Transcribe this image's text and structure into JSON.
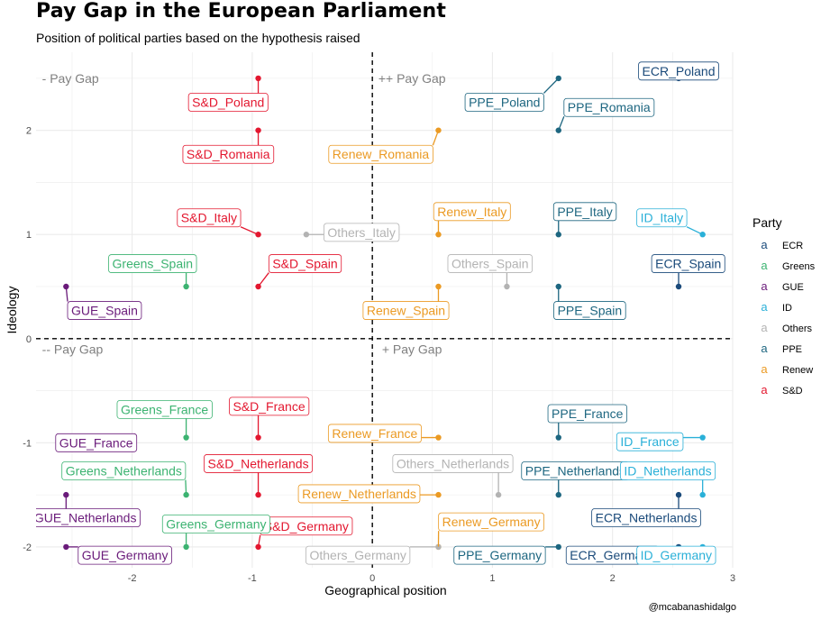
{
  "chart_data": {
    "type": "scatter",
    "title": "Pay Gap in the European Parliament",
    "subtitle": "Position of political parties based on the hypothesis raised",
    "xlabel": "Geographical position",
    "ylabel": "Ideology",
    "caption": "@mcabanashidalgo",
    "xlim": [
      -2.8,
      3.0
    ],
    "ylim": [
      -2.2,
      2.75
    ],
    "xticks": [
      -2,
      -1,
      0,
      1,
      2,
      3
    ],
    "yticks": [
      -2,
      -1,
      0,
      1,
      2
    ],
    "grid": true,
    "legend": {
      "title": "Party",
      "placement": "right",
      "key_glyph": "a",
      "entries": [
        "ECR",
        "Greens",
        "GUE",
        "ID",
        "Others",
        "PPE",
        "Renew",
        "S&D"
      ]
    },
    "colors": {
      "ECR": "#1a4a7a",
      "Greens": "#3cb371",
      "GUE": "#6a1b7a",
      "ID": "#2ab0d8",
      "Others": "#b3b3b3",
      "PPE": "#1d6680",
      "Renew": "#eb9a23",
      "S&D": "#e3172f"
    },
    "quadrant_labels": [
      {
        "text": "- Pay Gap",
        "x": -2.78,
        "y": 2.5
      },
      {
        "text": "++ Pay Gap",
        "x": 0.02,
        "y": 2.5
      },
      {
        "text": "-- Pay Gap",
        "x": -2.78,
        "y": -0.1
      },
      {
        "text": "+ Pay Gap",
        "x": 0.05,
        "y": -0.1
      }
    ],
    "points": [
      {
        "label": "S&D_Poland",
        "party": "S&D",
        "x": -0.95,
        "y": 2.5,
        "lx": -1.2,
        "ly": 2.27
      },
      {
        "label": "S&D_Romania",
        "party": "S&D",
        "x": -0.95,
        "y": 2.0,
        "lx": -1.2,
        "ly": 1.77
      },
      {
        "label": "S&D_Italy",
        "party": "S&D",
        "x": -0.95,
        "y": 1.0,
        "lx": -1.36,
        "ly": 1.16
      },
      {
        "label": "S&D_Spain",
        "party": "S&D",
        "x": -0.95,
        "y": 0.5,
        "lx": -0.56,
        "ly": 0.72
      },
      {
        "label": "S&D_France",
        "party": "S&D",
        "x": -0.95,
        "y": -0.95,
        "lx": -0.86,
        "ly": -0.65
      },
      {
        "label": "S&D_Netherlands",
        "party": "S&D",
        "x": -0.95,
        "y": -1.5,
        "lx": -0.95,
        "ly": -1.2
      },
      {
        "label": "S&D_Germany",
        "party": "S&D",
        "x": -0.95,
        "y": -2.0,
        "lx": -0.55,
        "ly": -1.8
      },
      {
        "label": "Greens_Spain",
        "party": "Greens",
        "x": -1.55,
        "y": 0.5,
        "lx": -1.83,
        "ly": 0.72
      },
      {
        "label": "Greens_France",
        "party": "Greens",
        "x": -1.55,
        "y": -0.95,
        "lx": -1.73,
        "ly": -0.68
      },
      {
        "label": "Greens_Netherlands",
        "party": "Greens",
        "x": -1.55,
        "y": -1.5,
        "lx": -2.07,
        "ly": -1.27
      },
      {
        "label": "Greens_Germany",
        "party": "Greens",
        "x": -1.55,
        "y": -2.0,
        "lx": -1.3,
        "ly": -1.78
      },
      {
        "label": "GUE_Spain",
        "party": "GUE",
        "x": -2.55,
        "y": 0.5,
        "lx": -2.23,
        "ly": 0.27
      },
      {
        "label": "GUE_France",
        "party": "GUE",
        "x": -2.55,
        "y": -0.95,
        "lx": -2.3,
        "ly": -1.0
      },
      {
        "label": "GUE_Netherlands",
        "party": "GUE",
        "x": -2.55,
        "y": -1.5,
        "lx": -2.39,
        "ly": -1.72
      },
      {
        "label": "GUE_Germany",
        "party": "GUE",
        "x": -2.55,
        "y": -2.0,
        "lx": -2.06,
        "ly": -2.08
      },
      {
        "label": "Renew_Romania",
        "party": "Renew",
        "x": 0.55,
        "y": 2.0,
        "lx": 0.07,
        "ly": 1.77
      },
      {
        "label": "Renew_Italy",
        "party": "Renew",
        "x": 0.55,
        "y": 1.0,
        "lx": 0.83,
        "ly": 1.22
      },
      {
        "label": "Renew_Spain",
        "party": "Renew",
        "x": 0.55,
        "y": 0.5,
        "lx": 0.28,
        "ly": 0.27
      },
      {
        "label": "Renew_France",
        "party": "Renew",
        "x": 0.55,
        "y": -0.95,
        "lx": 0.02,
        "ly": -0.91
      },
      {
        "label": "Renew_Netherlands",
        "party": "Renew",
        "x": 0.55,
        "y": -1.5,
        "lx": -0.11,
        "ly": -1.49
      },
      {
        "label": "Renew_Germany",
        "party": "Renew",
        "x": 0.55,
        "y": -2.0,
        "lx": 0.99,
        "ly": -1.76
      },
      {
        "label": "Others_Italy",
        "party": "Others",
        "x": -0.55,
        "y": 1.0,
        "lx": -0.09,
        "ly": 1.02
      },
      {
        "label": "Others_Spain",
        "party": "Others",
        "x": 1.12,
        "y": 0.5,
        "lx": 0.98,
        "ly": 0.72
      },
      {
        "label": "Others_Netherlands",
        "party": "Others",
        "x": 1.05,
        "y": -1.5,
        "lx": 0.67,
        "ly": -1.2
      },
      {
        "label": "Others_Germany",
        "party": "Others",
        "x": 0.55,
        "y": -2.0,
        "lx": -0.12,
        "ly": -2.08
      },
      {
        "label": "PPE_Poland",
        "party": "PPE",
        "x": 1.55,
        "y": 2.5,
        "lx": 1.1,
        "ly": 2.27
      },
      {
        "label": "PPE_Romania",
        "party": "PPE",
        "x": 1.55,
        "y": 2.0,
        "lx": 1.97,
        "ly": 2.22
      },
      {
        "label": "PPE_Italy",
        "party": "PPE",
        "x": 1.55,
        "y": 1.0,
        "lx": 1.77,
        "ly": 1.22
      },
      {
        "label": "PPE_Spain",
        "party": "PPE",
        "x": 1.55,
        "y": 0.5,
        "lx": 1.81,
        "ly": 0.27
      },
      {
        "label": "PPE_France",
        "party": "PPE",
        "x": 1.55,
        "y": -0.95,
        "lx": 1.79,
        "ly": -0.72
      },
      {
        "label": "PPE_Netherlands",
        "party": "PPE",
        "x": 1.55,
        "y": -1.5,
        "lx": 1.69,
        "ly": -1.27
      },
      {
        "label": "PPE_Germany",
        "party": "PPE",
        "x": 1.55,
        "y": -2.0,
        "lx": 1.06,
        "ly": -2.08
      },
      {
        "label": "ECR_Poland",
        "party": "ECR",
        "x": 2.55,
        "y": 2.5,
        "lx": 2.55,
        "ly": 2.57
      },
      {
        "label": "ECR_Spain",
        "party": "ECR",
        "x": 2.55,
        "y": 0.5,
        "lx": 2.63,
        "ly": 0.72
      },
      {
        "label": "ECR_Netherlands",
        "party": "ECR",
        "x": 2.55,
        "y": -1.5,
        "lx": 2.28,
        "ly": -1.72
      },
      {
        "label": "ECR_Germany",
        "party": "ECR",
        "x": 2.55,
        "y": -2.0,
        "lx": 2.0,
        "ly": -2.08
      },
      {
        "label": "ID_Italy",
        "party": "ID",
        "x": 2.75,
        "y": 1.0,
        "lx": 2.41,
        "ly": 1.16
      },
      {
        "label": "ID_France",
        "party": "ID",
        "x": 2.75,
        "y": -0.95,
        "lx": 2.31,
        "ly": -0.99
      },
      {
        "label": "ID_Netherlands",
        "party": "ID",
        "x": 2.75,
        "y": -1.5,
        "lx": 2.46,
        "ly": -1.27
      },
      {
        "label": "ID_Germany",
        "party": "ID",
        "x": 2.75,
        "y": -2.0,
        "lx": 2.53,
        "ly": -2.08
      }
    ]
  }
}
